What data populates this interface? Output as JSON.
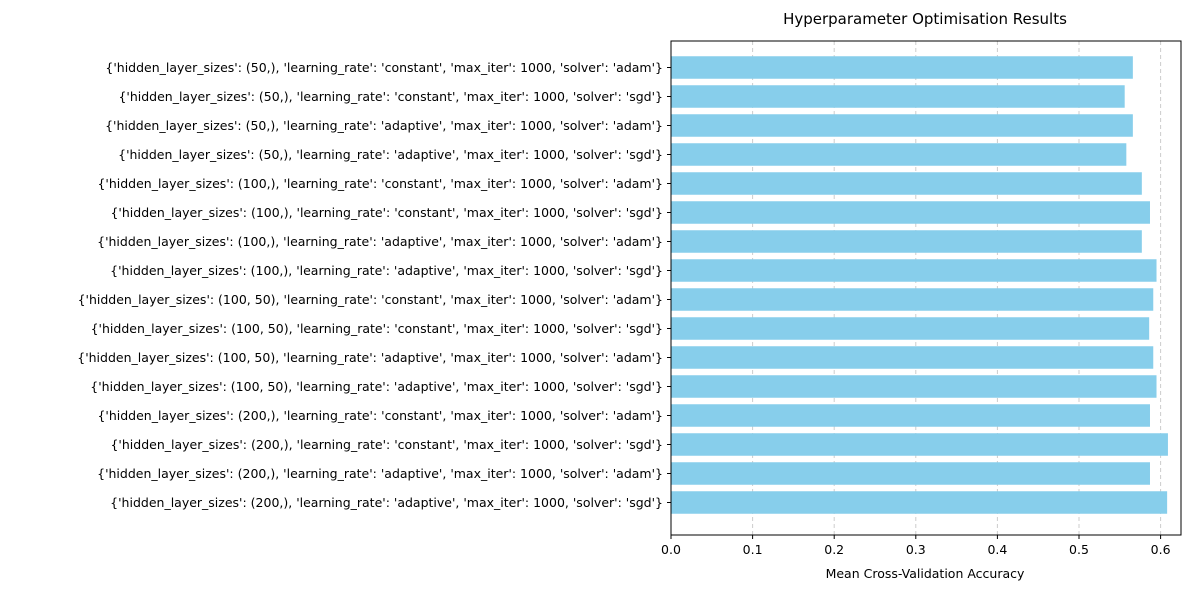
{
  "chart_data": {
    "type": "bar",
    "orientation": "horizontal",
    "title": "Hyperparameter Optimisation Results",
    "xlabel": "Mean Cross-Validation Accuracy",
    "ylabel": "",
    "xlim": [
      0,
      0.625
    ],
    "xticks": [
      0.0,
      0.1,
      0.2,
      0.3,
      0.4,
      0.5,
      0.6
    ],
    "xtick_labels": [
      "0.0",
      "0.1",
      "0.2",
      "0.3",
      "0.4",
      "0.5",
      "0.6"
    ],
    "grid": "x-axis dashed",
    "bar_color": "#87ceeb",
    "grid_color": "#cccccc",
    "categories": [
      "{'hidden_layer_sizes': (50,), 'learning_rate': 'constant', 'max_iter': 1000, 'solver': 'adam'}",
      "{'hidden_layer_sizes': (50,), 'learning_rate': 'constant', 'max_iter': 1000, 'solver': 'sgd'}",
      "{'hidden_layer_sizes': (50,), 'learning_rate': 'adaptive', 'max_iter': 1000, 'solver': 'adam'}",
      "{'hidden_layer_sizes': (50,), 'learning_rate': 'adaptive', 'max_iter': 1000, 'solver': 'sgd'}",
      "{'hidden_layer_sizes': (100,), 'learning_rate': 'constant', 'max_iter': 1000, 'solver': 'adam'}",
      "{'hidden_layer_sizes': (100,), 'learning_rate': 'constant', 'max_iter': 1000, 'solver': 'sgd'}",
      "{'hidden_layer_sizes': (100,), 'learning_rate': 'adaptive', 'max_iter': 1000, 'solver': 'adam'}",
      "{'hidden_layer_sizes': (100,), 'learning_rate': 'adaptive', 'max_iter': 1000, 'solver': 'sgd'}",
      "{'hidden_layer_sizes': (100, 50), 'learning_rate': 'constant', 'max_iter': 1000, 'solver': 'adam'}",
      "{'hidden_layer_sizes': (100, 50), 'learning_rate': 'constant', 'max_iter': 1000, 'solver': 'sgd'}",
      "{'hidden_layer_sizes': (100, 50), 'learning_rate': 'adaptive', 'max_iter': 1000, 'solver': 'adam'}",
      "{'hidden_layer_sizes': (100, 50), 'learning_rate': 'adaptive', 'max_iter': 1000, 'solver': 'sgd'}",
      "{'hidden_layer_sizes': (200,), 'learning_rate': 'constant', 'max_iter': 1000, 'solver': 'adam'}",
      "{'hidden_layer_sizes': (200,), 'learning_rate': 'constant', 'max_iter': 1000, 'solver': 'sgd'}",
      "{'hidden_layer_sizes': (200,), 'learning_rate': 'adaptive', 'max_iter': 1000, 'solver': 'adam'}",
      "{'hidden_layer_sizes': (200,), 'learning_rate': 'adaptive', 'max_iter': 1000, 'solver': 'sgd'}"
    ],
    "values": [
      0.566,
      0.556,
      0.566,
      0.558,
      0.577,
      0.587,
      0.577,
      0.595,
      0.591,
      0.586,
      0.591,
      0.595,
      0.587,
      0.609,
      0.587,
      0.608
    ]
  }
}
